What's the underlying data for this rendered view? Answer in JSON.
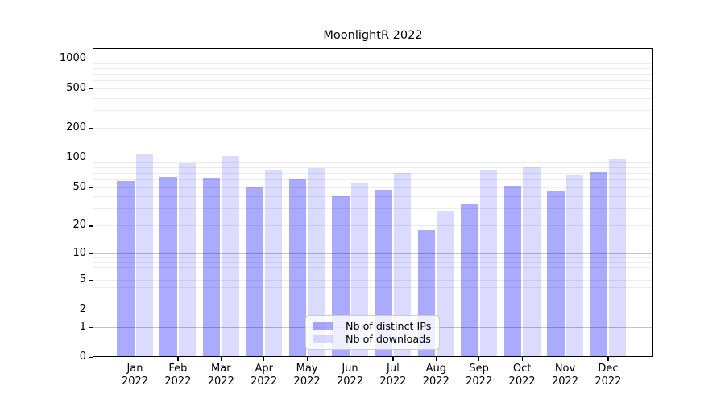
{
  "chart_data": {
    "type": "bar",
    "title": "MoonlightR 2022",
    "categories": [
      "Jan\n2022",
      "Feb\n2022",
      "Mar\n2022",
      "Apr\n2022",
      "May\n2022",
      "Jun\n2022",
      "Jul\n2022",
      "Aug\n2022",
      "Sep\n2022",
      "Oct\n2022",
      "Nov\n2022",
      "Dec\n2022"
    ],
    "series": [
      {
        "name": "Nb of distinct IPs",
        "color": "#aaaaff",
        "fill": "rgba(0,0,255,0.335)",
        "values": [
          58,
          63,
          62,
          50,
          60,
          40,
          47,
          18,
          33,
          52,
          45,
          71
        ]
      },
      {
        "name": "Nb of downloads",
        "color": "#dbdbff",
        "fill": "rgba(0,0,255,0.142)",
        "values": [
          110,
          88,
          104,
          74,
          78,
          55,
          70,
          28,
          75,
          80,
          66,
          96
        ]
      }
    ],
    "xlabel": "",
    "ylabel": "",
    "yscale": "log1p",
    "yticks": [
      0,
      1,
      2,
      5,
      10,
      20,
      50,
      100,
      200,
      500,
      1000
    ],
    "ylim": [
      0,
      1265
    ],
    "grid": {
      "on": true,
      "major_color": "#c3c3c3",
      "minor_color": "#ececec"
    },
    "legend_position": "lower-center"
  }
}
